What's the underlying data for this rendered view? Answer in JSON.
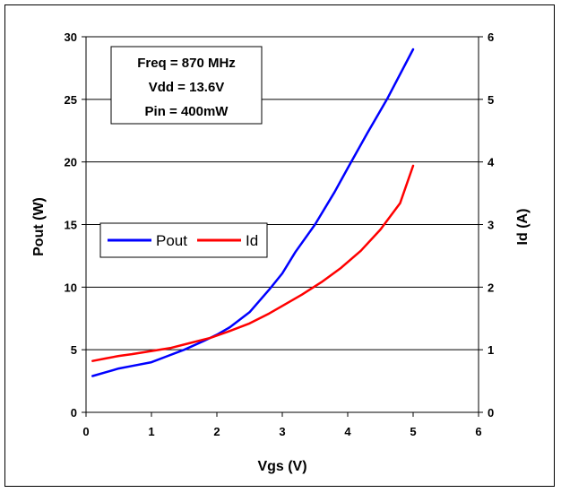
{
  "chart_data": {
    "type": "line",
    "xlabel": "Vgs (V)",
    "ylabel": "Pout (W)",
    "y2label": "Id (A)",
    "xlim": [
      0,
      6
    ],
    "ylim": [
      0,
      30
    ],
    "y2lim": [
      0,
      6
    ],
    "xticks": [
      "0",
      "1",
      "2",
      "3",
      "4",
      "5",
      "6"
    ],
    "yticks": [
      "0",
      "5",
      "10",
      "15",
      "20",
      "25",
      "30"
    ],
    "y2ticks": [
      "0",
      "1",
      "2",
      "3",
      "4",
      "5",
      "6"
    ],
    "grid": "horizontal",
    "legend_position": "center-left",
    "annotation": [
      "Freq = 870 MHz",
      "Vdd = 13.6V",
      "Pin = 400mW"
    ],
    "series": [
      {
        "name": "Pout",
        "axis": "left",
        "color": "#0000ff",
        "x": [
          0.1,
          0.3,
          0.5,
          0.7,
          1.0,
          1.2,
          1.5,
          1.8,
          2.0,
          2.2,
          2.5,
          2.8,
          3.0,
          3.2,
          3.5,
          3.8,
          4.0,
          4.3,
          4.6,
          5.0
        ],
        "values": [
          2.9,
          3.2,
          3.5,
          3.7,
          4.0,
          4.4,
          5.0,
          5.7,
          6.2,
          6.8,
          8.0,
          9.8,
          11.1,
          12.8,
          15.0,
          17.6,
          19.5,
          22.3,
          25.0,
          29.0
        ]
      },
      {
        "name": "Id",
        "axis": "right",
        "color": "#ff0000",
        "x": [
          0.1,
          0.3,
          0.5,
          0.7,
          1.0,
          1.3,
          1.6,
          1.9,
          2.2,
          2.5,
          2.8,
          3.0,
          3.3,
          3.6,
          3.9,
          4.2,
          4.5,
          4.8,
          5.0
        ],
        "values": [
          0.82,
          0.86,
          0.9,
          0.93,
          0.98,
          1.03,
          1.11,
          1.19,
          1.3,
          1.42,
          1.58,
          1.7,
          1.88,
          2.08,
          2.31,
          2.58,
          2.92,
          3.34,
          3.94
        ]
      }
    ]
  }
}
